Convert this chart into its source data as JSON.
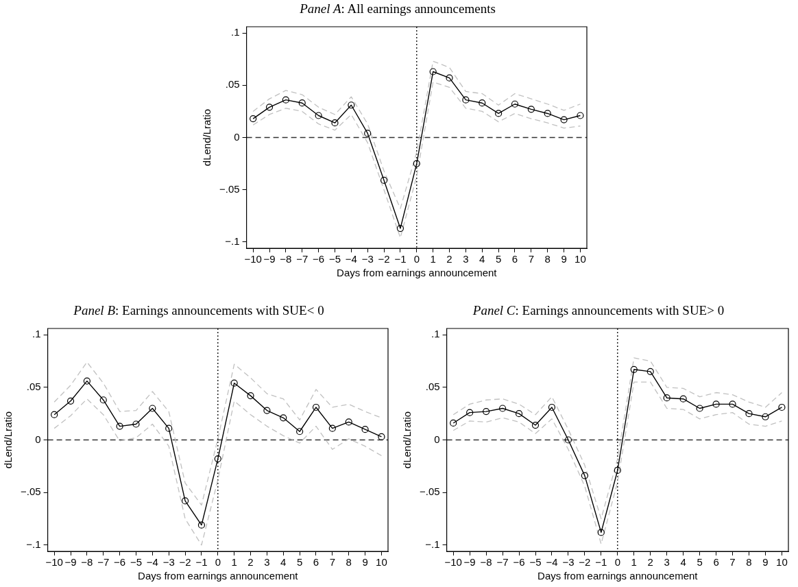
{
  "chart_data": [
    {
      "type": "line",
      "title": "Panel A: All earnings announcements",
      "xlabel": "Days from earnings announcement",
      "ylabel": "dLend/Lratio",
      "x": [
        -10,
        -9,
        -8,
        -7,
        -6,
        -5,
        -4,
        -3,
        -2,
        -1,
        0,
        1,
        2,
        3,
        4,
        5,
        6,
        7,
        8,
        9,
        10
      ],
      "xlim": [
        -10.4,
        10.4
      ],
      "xticks": [
        {
          "value": -10,
          "label": "−10"
        },
        {
          "value": -9,
          "label": "−9"
        },
        {
          "value": -8,
          "label": "−8"
        },
        {
          "value": -7,
          "label": "−7"
        },
        {
          "value": -6,
          "label": "−6"
        },
        {
          "value": -5,
          "label": "−5"
        },
        {
          "value": -4,
          "label": "−4"
        },
        {
          "value": -3,
          "label": "−3"
        },
        {
          "value": -2,
          "label": "−2"
        },
        {
          "value": -1,
          "label": "−1"
        },
        0,
        1,
        2,
        3,
        4,
        5,
        6,
        7,
        8,
        9,
        10
      ],
      "ylim": [
        -0.106,
        0.106
      ],
      "yticks": [
        {
          "value": -0.1,
          "label": "−.1"
        },
        {
          "value": -0.05,
          "label": "−.05"
        },
        {
          "value": 0,
          "label": "0"
        },
        {
          "value": 0.05,
          "label": ".05"
        },
        {
          "value": 0.1,
          "label": ".1"
        }
      ],
      "grid": false,
      "legend": false,
      "ref_lines": [
        {
          "axis": "y",
          "value": 0,
          "line_style": "dashed",
          "color": "#333333"
        },
        {
          "axis": "x",
          "value": 0,
          "line_style": "dotted",
          "color": "#000000"
        }
      ],
      "series": [
        {
          "color": "#000000",
          "marker": "circle",
          "line_style": "solid",
          "values": [
            0.018,
            0.029,
            0.036,
            0.033,
            0.021,
            0.014,
            0.031,
            0.004,
            -0.041,
            -0.087,
            -0.025,
            0.063,
            0.057,
            0.036,
            0.033,
            0.023,
            0.032,
            0.027,
            0.023,
            0.017,
            0.021
          ]
        },
        {
          "color": "#c0c0c0",
          "marker": "none",
          "line_style": "dashed",
          "values": [
            0.025,
            0.037,
            0.045,
            0.041,
            0.029,
            0.022,
            0.039,
            0.013,
            -0.032,
            -0.068,
            -0.014,
            0.073,
            0.067,
            0.044,
            0.042,
            0.031,
            0.042,
            0.037,
            0.032,
            0.026,
            0.032
          ]
        },
        {
          "color": "#c0c0c0",
          "marker": "none",
          "line_style": "dashed",
          "values": [
            0.012,
            0.022,
            0.028,
            0.025,
            0.013,
            0.007,
            0.022,
            -0.005,
            -0.05,
            -0.096,
            -0.037,
            0.053,
            0.048,
            0.028,
            0.025,
            0.015,
            0.023,
            0.018,
            0.014,
            0.009,
            0.011
          ]
        }
      ]
    },
    {
      "type": "line",
      "title": "Panel B: Earnings announcements with SUE< 0",
      "xlabel": "Days from earnings announcement",
      "ylabel": "dLend/Lratio",
      "x": [
        -10,
        -9,
        -8,
        -7,
        -6,
        -5,
        -4,
        -3,
        -2,
        -1,
        0,
        1,
        2,
        3,
        4,
        5,
        6,
        7,
        8,
        9,
        10
      ],
      "xlim": [
        -10.4,
        10.4
      ],
      "xticks": [
        {
          "value": -10,
          "label": "−10"
        },
        {
          "value": -9,
          "label": "−9"
        },
        {
          "value": -8,
          "label": "−8"
        },
        {
          "value": -7,
          "label": "−7"
        },
        {
          "value": -6,
          "label": "−6"
        },
        {
          "value": -5,
          "label": "−5"
        },
        {
          "value": -4,
          "label": "−4"
        },
        {
          "value": -3,
          "label": "−3"
        },
        {
          "value": -2,
          "label": "−2"
        },
        {
          "value": -1,
          "label": "−1"
        },
        0,
        1,
        2,
        3,
        4,
        5,
        6,
        7,
        8,
        9,
        10
      ],
      "ylim": [
        -0.106,
        0.106
      ],
      "yticks": [
        {
          "value": -0.1,
          "label": "−.1"
        },
        {
          "value": -0.05,
          "label": "−.05"
        },
        {
          "value": 0,
          "label": "0"
        },
        {
          "value": 0.05,
          "label": ".05"
        },
        {
          "value": 0.1,
          "label": ".1"
        }
      ],
      "grid": false,
      "legend": false,
      "ref_lines": [
        {
          "axis": "y",
          "value": 0,
          "line_style": "dashed",
          "color": "#333333"
        },
        {
          "axis": "x",
          "value": 0,
          "line_style": "dotted",
          "color": "#000000"
        }
      ],
      "series": [
        {
          "color": "#000000",
          "marker": "circle",
          "line_style": "solid",
          "values": [
            0.024,
            0.037,
            0.056,
            0.038,
            0.013,
            0.015,
            0.03,
            0.011,
            -0.058,
            -0.081,
            -0.018,
            0.054,
            0.042,
            0.028,
            0.021,
            0.008,
            0.031,
            0.011,
            0.017,
            0.01,
            0.003
          ]
        },
        {
          "color": "#c0c0c0",
          "marker": "none",
          "line_style": "dashed",
          "values": [
            0.036,
            0.052,
            0.074,
            0.054,
            0.027,
            0.028,
            0.046,
            0.027,
            -0.041,
            -0.062,
            0.001,
            0.072,
            0.059,
            0.044,
            0.039,
            0.019,
            0.048,
            0.031,
            0.034,
            0.027,
            0.021
          ]
        },
        {
          "color": "#c0c0c0",
          "marker": "none",
          "line_style": "dashed",
          "values": [
            0.011,
            0.023,
            0.039,
            0.024,
            -0.001,
            0.002,
            0.015,
            -0.006,
            -0.075,
            -0.1,
            -0.038,
            0.037,
            0.024,
            0.013,
            0.004,
            -0.003,
            0.013,
            -0.009,
            0.001,
            -0.006,
            -0.015
          ]
        }
      ]
    },
    {
      "type": "line",
      "title": "Panel C: Earnings announcements with SUE> 0",
      "xlabel": "Days from earnings announcement",
      "ylabel": "dLend/Lratio",
      "x": [
        -10,
        -9,
        -8,
        -7,
        -6,
        -5,
        -4,
        -3,
        -2,
        -1,
        0,
        1,
        2,
        3,
        4,
        5,
        6,
        7,
        8,
        9,
        10
      ],
      "xlim": [
        -10.4,
        10.4
      ],
      "xticks": [
        {
          "value": -10,
          "label": "−10"
        },
        {
          "value": -9,
          "label": "−9"
        },
        {
          "value": -8,
          "label": "−8"
        },
        {
          "value": -7,
          "label": "−7"
        },
        {
          "value": -6,
          "label": "−6"
        },
        {
          "value": -5,
          "label": "−5"
        },
        {
          "value": -4,
          "label": "−4"
        },
        {
          "value": -3,
          "label": "−3"
        },
        {
          "value": -2,
          "label": "−2"
        },
        {
          "value": -1,
          "label": "−1"
        },
        0,
        1,
        2,
        3,
        4,
        5,
        6,
        7,
        8,
        9,
        10
      ],
      "ylim": [
        -0.106,
        0.106
      ],
      "yticks": [
        {
          "value": -0.1,
          "label": "−.1"
        },
        {
          "value": -0.05,
          "label": "−.05"
        },
        {
          "value": 0,
          "label": "0"
        },
        {
          "value": 0.05,
          "label": ".05"
        },
        {
          "value": 0.1,
          "label": ".1"
        }
      ],
      "grid": false,
      "legend": false,
      "ref_lines": [
        {
          "axis": "y",
          "value": 0,
          "line_style": "dashed",
          "color": "#333333"
        },
        {
          "axis": "x",
          "value": 0,
          "line_style": "dotted",
          "color": "#000000"
        }
      ],
      "series": [
        {
          "color": "#000000",
          "marker": "circle",
          "line_style": "solid",
          "values": [
            0.016,
            0.026,
            0.027,
            0.03,
            0.025,
            0.014,
            0.031,
            0,
            -0.034,
            -0.088,
            -0.029,
            0.067,
            0.065,
            0.04,
            0.039,
            0.03,
            0.034,
            0.034,
            0.025,
            0.022,
            0.031
          ]
        },
        {
          "color": "#c0c0c0",
          "marker": "none",
          "line_style": "dashed",
          "values": [
            0.024,
            0.034,
            0.038,
            0.039,
            0.034,
            0.024,
            0.041,
            0.01,
            -0.024,
            -0.075,
            -0.018,
            0.078,
            0.075,
            0.05,
            0.049,
            0.041,
            0.045,
            0.043,
            0.036,
            0.031,
            0.045
          ]
        },
        {
          "color": "#c0c0c0",
          "marker": "none",
          "line_style": "dashed",
          "values": [
            0.009,
            0.018,
            0.017,
            0.021,
            0.017,
            0.006,
            0.02,
            -0.009,
            -0.044,
            -0.099,
            -0.04,
            0.055,
            0.055,
            0.03,
            0.029,
            0.02,
            0.024,
            0.026,
            0.015,
            0.013,
            0.018
          ]
        }
      ]
    }
  ]
}
